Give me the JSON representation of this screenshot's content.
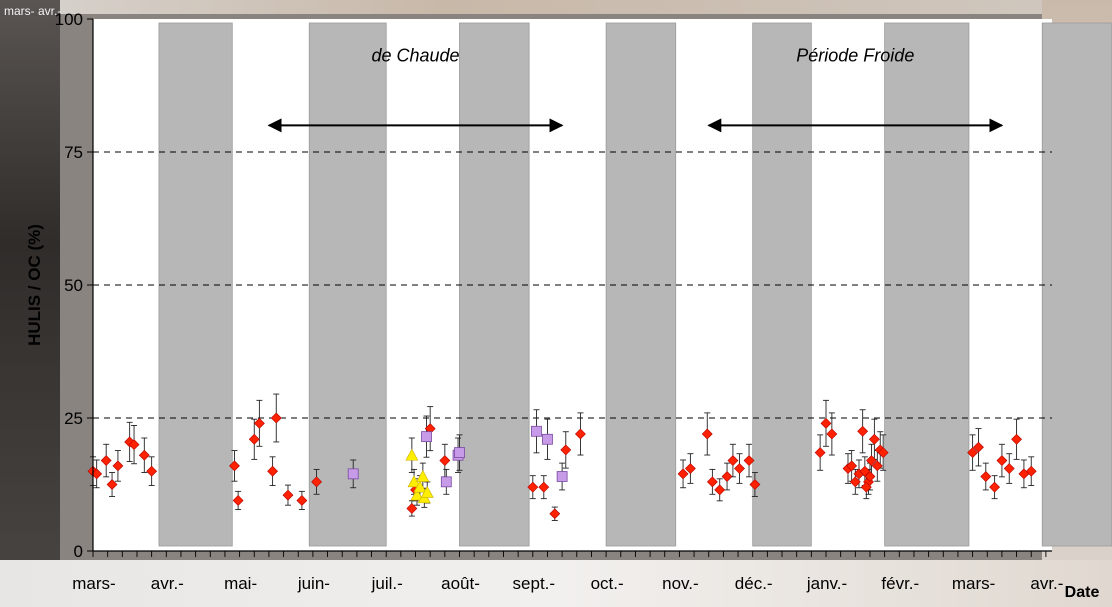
{
  "chart_data": {
    "type": "scatter",
    "ylabel": "HULIS / OC (%)",
    "xlabel": "Date",
    "ylim": [
      0,
      100
    ],
    "yticks": [
      0,
      25,
      50,
      75,
      100
    ],
    "grid": "dashed horizontal at 25, 50, 75",
    "x_categories": [
      "mars-",
      "avr.-",
      "mai-",
      "juin-",
      "juil.-",
      "août-",
      "sept.-",
      "oct.-",
      "nov.-",
      "déc.-",
      "janv.-",
      "févr.-",
      "mars-",
      "avr.-"
    ],
    "top_left_label": "mars- avr.-",
    "annotations": [
      {
        "text": "de Chaude",
        "arrow_from_month": 2.4,
        "arrow_to_month": 6.4,
        "y": 80
      },
      {
        "text": "Période Froide",
        "arrow_from_month": 8.4,
        "arrow_to_month": 12.4,
        "y": 80
      }
    ],
    "gray_bands": [
      {
        "from_month": 0.9,
        "to_month": 1.9
      },
      {
        "from_month": 2.95,
        "to_month": 4.0
      },
      {
        "from_month": 5.0,
        "to_month": 5.95
      },
      {
        "from_month": 7.0,
        "to_month": 7.95
      },
      {
        "from_month": 9.0,
        "to_month": 9.8
      },
      {
        "from_month": 10.8,
        "to_month": 11.95
      },
      {
        "from_month": 12.95,
        "to_month": 13.9
      }
    ],
    "colors": {
      "series_red": "#ff2200",
      "series_purple": "#c79be8",
      "series_yellow": "#ffee00",
      "band": "#b7b7b7"
    },
    "series": [
      {
        "marker": "diamond",
        "color": "#ff2200",
        "points": [
          [
            0.0,
            15
          ],
          [
            0.05,
            14.5
          ],
          [
            0.18,
            17
          ],
          [
            0.26,
            12.5
          ],
          [
            0.34,
            16
          ],
          [
            0.5,
            20.5
          ],
          [
            0.56,
            20
          ],
          [
            0.7,
            18
          ],
          [
            0.8,
            15
          ],
          [
            1.93,
            16
          ],
          [
            1.98,
            9.5
          ],
          [
            2.2,
            21
          ],
          [
            2.27,
            24
          ],
          [
            2.45,
            15
          ],
          [
            2.5,
            25
          ],
          [
            2.66,
            10.5
          ],
          [
            2.85,
            9.5
          ],
          [
            3.05,
            13
          ],
          [
            4.35,
            8
          ],
          [
            4.4,
            11.5
          ],
          [
            4.6,
            23
          ],
          [
            4.8,
            17
          ],
          [
            6.0,
            12
          ],
          [
            6.15,
            12
          ],
          [
            6.3,
            7
          ],
          [
            6.45,
            19
          ],
          [
            6.65,
            22
          ],
          [
            8.05,
            14.5
          ],
          [
            8.15,
            15.5
          ],
          [
            8.38,
            22
          ],
          [
            8.45,
            13
          ],
          [
            8.55,
            11.5
          ],
          [
            8.65,
            14
          ],
          [
            8.73,
            17
          ],
          [
            8.82,
            15.5
          ],
          [
            8.95,
            17
          ],
          [
            9.03,
            12.5
          ],
          [
            9.92,
            18.5
          ],
          [
            10.0,
            24
          ],
          [
            10.08,
            22
          ],
          [
            10.3,
            15.5
          ],
          [
            10.35,
            16
          ],
          [
            10.4,
            13
          ],
          [
            10.45,
            14.5
          ],
          [
            10.5,
            22.5
          ],
          [
            10.53,
            15
          ],
          [
            10.58,
            13
          ],
          [
            10.62,
            17
          ],
          [
            10.66,
            21
          ],
          [
            10.7,
            16
          ],
          [
            10.74,
            19
          ],
          [
            10.78,
            18.5
          ],
          [
            10.6,
            14
          ],
          [
            10.55,
            12
          ],
          [
            12.0,
            18.5
          ],
          [
            12.08,
            19.5
          ],
          [
            12.18,
            14
          ],
          [
            12.3,
            12
          ],
          [
            12.4,
            17
          ],
          [
            12.5,
            15.5
          ],
          [
            12.6,
            21
          ],
          [
            12.7,
            14.5
          ],
          [
            12.8,
            15
          ]
        ]
      },
      {
        "marker": "square",
        "color": "#c79be8",
        "points": [
          [
            3.55,
            14.5
          ],
          [
            4.55,
            21.5
          ],
          [
            4.82,
            13
          ],
          [
            4.98,
            18
          ],
          [
            5.0,
            18.5
          ],
          [
            6.05,
            22.5
          ],
          [
            6.2,
            21
          ],
          [
            6.4,
            14
          ]
        ]
      },
      {
        "marker": "triangle",
        "color": "#ffee00",
        "points": [
          [
            4.35,
            18
          ],
          [
            4.38,
            13
          ],
          [
            4.42,
            10.5
          ],
          [
            4.46,
            12
          ],
          [
            4.5,
            14
          ],
          [
            4.52,
            10
          ],
          [
            4.56,
            11
          ]
        ]
      }
    ]
  }
}
